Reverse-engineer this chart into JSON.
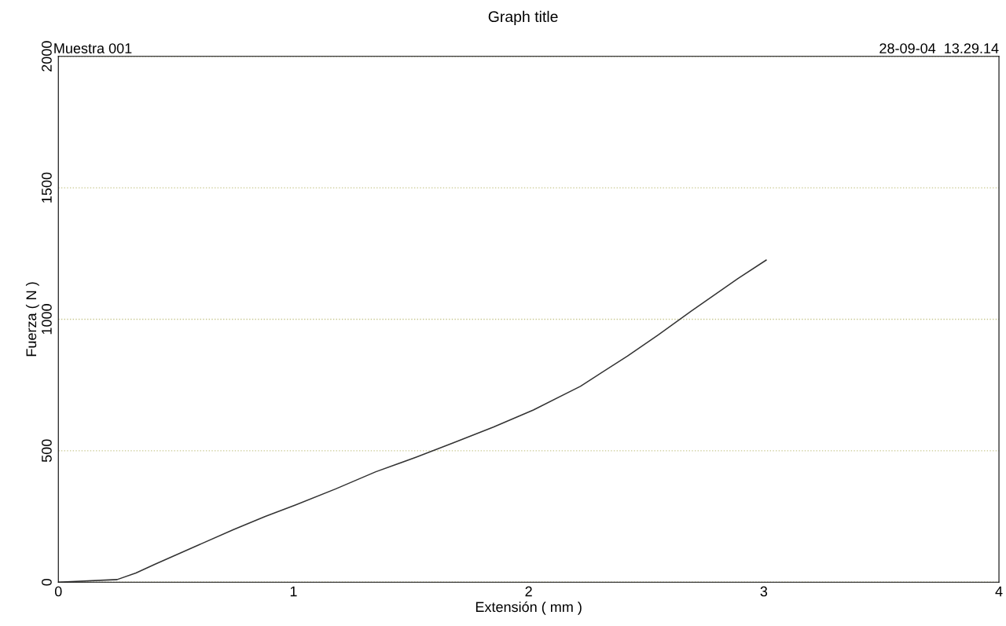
{
  "chart_data": {
    "type": "line",
    "title": "Graph title",
    "xlabel": "Extensión ( mm )",
    "ylabel": "Fuerza ( N )",
    "annotations": [
      "Muestra 001",
      "28-09-04  13.29.14"
    ],
    "x": [
      0,
      0.25,
      0.33,
      0.41,
      0.58,
      0.745,
      0.88,
      1.01,
      1.18,
      1.35,
      1.52,
      1.68,
      1.85,
      2.02,
      2.22,
      2.42,
      2.55,
      2.69,
      2.89,
      3.01
    ],
    "series": [
      {
        "color": "#333333",
        "values": [
          0,
          10,
          35,
          68,
          135,
          200,
          250,
          294,
          355,
          420,
          475,
          530,
          590,
          655,
          745,
          860,
          940,
          1030,
          1155,
          1225
        ]
      }
    ],
    "xlim": [
      0,
      4
    ],
    "ylim": [
      0,
      2000
    ],
    "xticks": [
      0,
      1,
      2,
      3,
      4
    ],
    "yticks": [
      0,
      500,
      1000,
      1500,
      2000
    ],
    "grid": "y",
    "line_style": "solid",
    "marker": "none"
  }
}
